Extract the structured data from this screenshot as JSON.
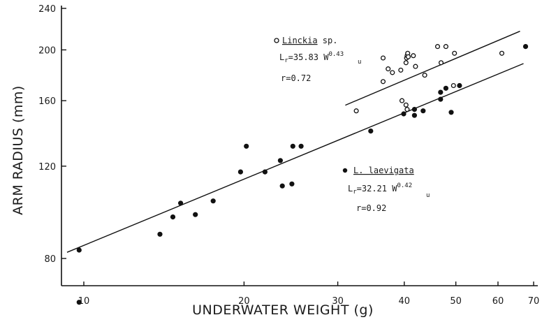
{
  "chart_data": {
    "type": "scatter",
    "title": "",
    "xlabel": "UNDERWATER WEIGHT (g)",
    "ylabel": "ARM RADIUS (mm)",
    "xscale": "log",
    "yscale": "log",
    "xlim": [
      8.2,
      70
    ],
    "ylim": [
      68,
      240
    ],
    "x_ticks": [
      10,
      20,
      30,
      40,
      50,
      60,
      70
    ],
    "x_tick_labels": [
      "10",
      "20",
      "30",
      "40",
      "50",
      "60",
      "70"
    ],
    "y_ticks": [
      80,
      120,
      160,
      200,
      240
    ],
    "y_tick_labels": [
      "80",
      "120",
      "160",
      "200",
      "240"
    ],
    "grid": false,
    "series": [
      {
        "name": "Linckia sp.",
        "marker": "open-circle",
        "x": [
          32.5,
          36.5,
          36.5,
          37.3,
          38.0,
          39.4,
          40.3,
          40.4,
          40.5,
          40.6,
          40.7,
          41.6,
          42.0,
          43.7,
          46.2,
          46.9,
          47.9,
          49.5,
          49.7,
          61.0,
          39.6,
          40.3,
          40.5
        ],
        "y": [
          153,
          174,
          193,
          184,
          181,
          183,
          189,
          193,
          195,
          197,
          194,
          195,
          186,
          179,
          203,
          189,
          203,
          171,
          197,
          197,
          160,
          157,
          154
        ]
      },
      {
        "name": "L. laevigata",
        "marker": "filled-circle",
        "x": [
          9.8,
          9.8,
          13.9,
          14.7,
          15.2,
          16.2,
          17.5,
          19.7,
          20.2,
          21.9,
          23.4,
          23.6,
          24.6,
          24.7,
          25.6,
          34.6,
          39.9,
          41.8,
          41.8,
          43.4,
          46.8,
          46.8,
          47.9,
          49.0,
          50.8,
          67.6
        ],
        "y": [
          83,
          66,
          89,
          96,
          102,
          97,
          103,
          117,
          131,
          117,
          123,
          110,
          111,
          131,
          131,
          140,
          151,
          150,
          154,
          153,
          161,
          166,
          169,
          152,
          171,
          203
        ]
      }
    ],
    "fits": [
      {
        "series": "Linckia sp.",
        "a": 35.83,
        "b": 0.43,
        "x_range": [
          31,
          66
        ]
      },
      {
        "series": "L. laevigata",
        "a": 32.21,
        "b": 0.42,
        "x_range": [
          9.3,
          67
        ]
      }
    ],
    "annotations": {
      "linckia": {
        "name": "Linckia",
        "suffix": " sp.",
        "lhs": "L",
        "lhs_sub": "r",
        "rhs": "=35.83 W",
        "sub": "u",
        "exponent": "0.43",
        "r_text": "r=0.72"
      },
      "laevigata": {
        "name": "L. laevigata",
        "lhs": "L",
        "lhs_sub": "r",
        "rhs": "=32.21 W",
        "sub": "u",
        "exponent": "0.42",
        "r_text": "r=0.92"
      }
    }
  }
}
